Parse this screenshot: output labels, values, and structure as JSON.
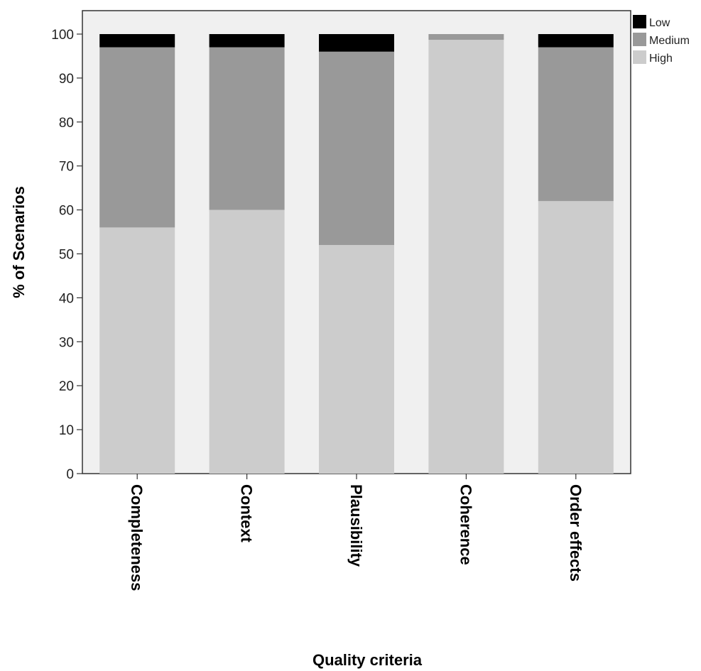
{
  "chart_data": {
    "type": "bar",
    "stacked": true,
    "categories": [
      "Completeness",
      "Context",
      "Plausibility",
      "Coherence",
      "Order effects"
    ],
    "series": [
      {
        "name": "High",
        "values": [
          56,
          60,
          52,
          98.7,
          62
        ],
        "color": "#cccccc"
      },
      {
        "name": "Medium",
        "values": [
          41,
          37,
          44,
          1.3,
          35
        ],
        "color": "#999999"
      },
      {
        "name": "Low",
        "values": [
          3,
          3,
          4,
          0,
          3
        ],
        "color": "#000000"
      }
    ],
    "legend_order": [
      "Low",
      "Medium",
      "High"
    ],
    "title": "",
    "xlabel": "Quality criteria",
    "ylabel": "% of Scenarios",
    "ylim": [
      0,
      105
    ],
    "yticks": [
      0,
      10,
      20,
      30,
      40,
      50,
      60,
      70,
      80,
      90,
      100
    ],
    "grid": false,
    "legend_position": "top-right",
    "plot_background": "#f0f0f0"
  }
}
